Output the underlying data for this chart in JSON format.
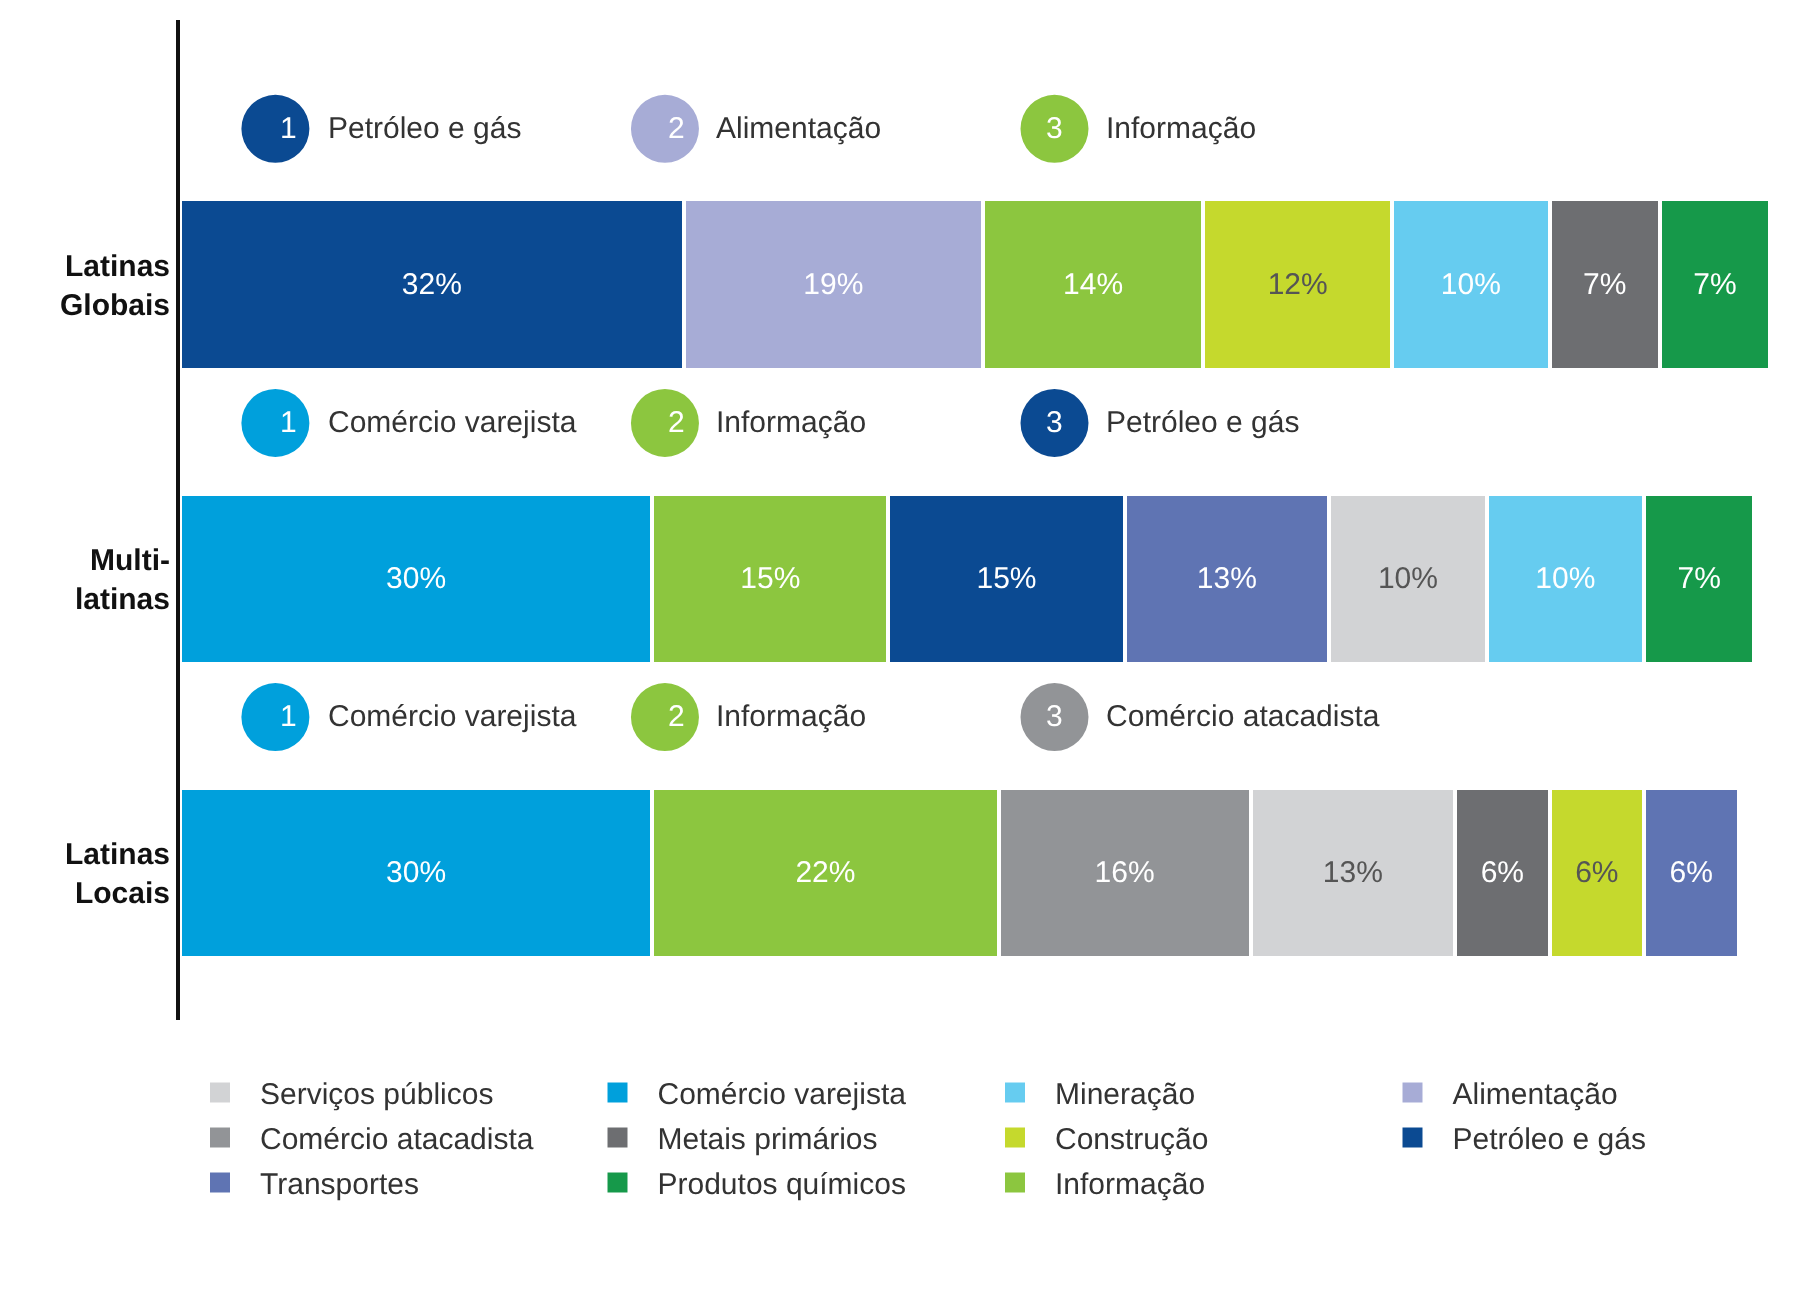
{
  "chart_data": {
    "type": "bar",
    "orientation": "horizontal",
    "stacked": true,
    "categories": [
      "Latinas Globais",
      "Multi-latinas",
      "Latinas Locais"
    ],
    "legend": "bottom",
    "series": [
      {
        "colors": [
          "#0b4a92",
          "#00a0dc",
          "#00a0dc"
        ],
        "values": [
          32,
          30,
          30
        ],
        "value_labels": [
          "32%",
          "30%",
          "30%"
        ]
      },
      {
        "colors": [
          "#a7acd6",
          "#8cc63f",
          "#8cc63f"
        ],
        "values": [
          19,
          15,
          22
        ],
        "value_labels": [
          "19%",
          "15%",
          "22%"
        ]
      },
      {
        "colors": [
          "#8cc63f",
          "#0b4a92",
          "#929497"
        ],
        "values": [
          14,
          15,
          16
        ],
        "value_labels": [
          "14%",
          "15%",
          "16%"
        ]
      },
      {
        "colors": [
          "#c5d92d",
          "#5f74b3",
          "#d2d3d5"
        ],
        "values": [
          12,
          13,
          13
        ],
        "value_labels": [
          "12%",
          "13%",
          "13%"
        ]
      },
      {
        "colors": [
          "#66ccf0",
          "#d2d3d5",
          "#6d6e71"
        ],
        "values": [
          10,
          10,
          6
        ],
        "value_labels": [
          "10%",
          "10%",
          "6%"
        ]
      },
      {
        "colors": [
          "#6d6e71",
          "#66ccf0",
          "#c5d92d"
        ],
        "values": [
          7,
          10,
          6
        ],
        "value_labels": [
          "7%",
          "10%",
          "6%"
        ]
      },
      {
        "colors": [
          "#16994a",
          "#16994a",
          "#5f74b3"
        ],
        "values": [
          7,
          7,
          6
        ],
        "value_labels": [
          "7%",
          "7%",
          "6%"
        ]
      },
      {
        "name": "Serviços públicos",
        "color": "#d2d3d5",
        "values": [
          null,
          null,
          null
        ]
      },
      {
        "name": "Comércio varejista",
        "color": "#00a0dc",
        "values": [
          null,
          null,
          null
        ]
      },
      {
        "name": "Mineração",
        "color": "#66ccf0",
        "values": [
          null,
          null,
          null
        ]
      },
      {
        "name": "Alimentação",
        "color": "#a7acd6",
        "values": [
          null,
          null,
          null
        ]
      },
      {
        "name": "Comércio atacadista",
        "color": "#929497",
        "values": [
          null,
          null,
          null
        ]
      },
      {
        "name": "Metais primários",
        "color": "#6d6e71",
        "values": [
          null,
          null,
          null
        ]
      },
      {
        "name": "Construção",
        "color": "#c5d92d",
        "values": [
          null,
          null,
          null
        ]
      },
      {
        "name": "Petróleo e gás",
        "color": "#0b4a92",
        "values": [
          null,
          null,
          null
        ]
      },
      {
        "name": "Transportes",
        "color": "#5f74b3",
        "values": [
          null,
          null,
          null
        ]
      },
      {
        "name": "Produtos químicos",
        "color": "#16994a",
        "values": [
          null,
          null,
          null
        ]
      },
      {
        "name": "Informação",
        "color": "#8cc63f",
        "values": [
          null,
          null,
          null
        ]
      }
    ],
    "annotations": [
      "1 Petróleo e gás",
      "2 Alimentação",
      "3 Informação",
      "1 Comércio varejista",
      "2 Informação",
      "3 Petróleo e gás",
      "1 Comércio varejista",
      "2 Informação",
      "3 Comércio atacadista"
    ]
  }
}
